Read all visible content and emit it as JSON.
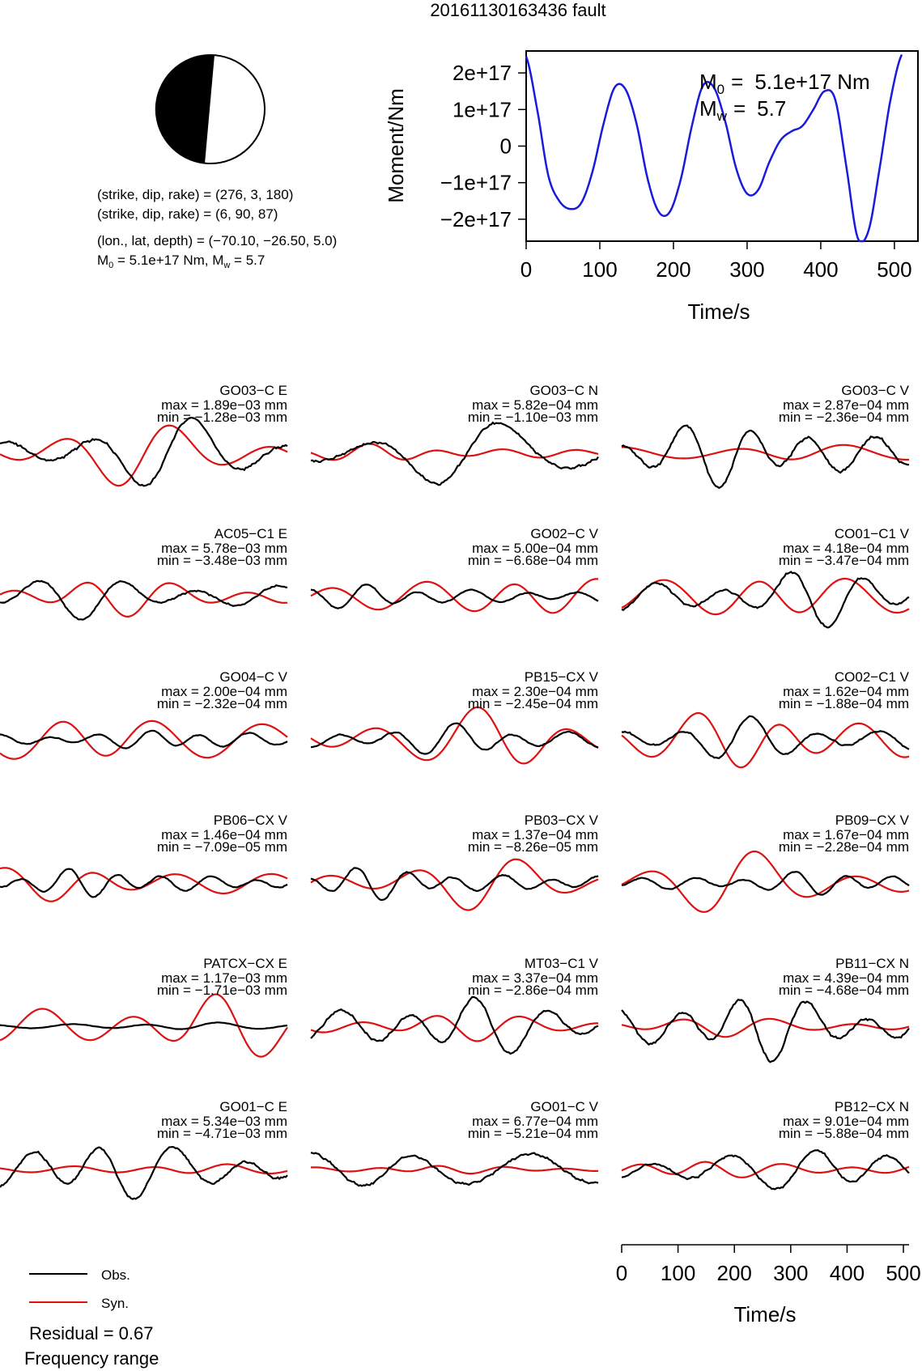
{
  "title": "20161130163436 fault",
  "mechanism": {
    "plane1": "(strike, dip, rake) = (276, 3, 180)",
    "plane2": "(strike, dip, rake) = (6, 90, 87)",
    "location": "(lon., lat, depth) = (−70.10, −26.50, 5.0)",
    "m0_label": "M",
    "m0_sub": "0",
    "m0_value": " =  5.1e+17 Nm, M",
    "mw_sub": "w",
    "mw_value": " = 5.7"
  },
  "moment_plot": {
    "ylabel": "Moment/Nm",
    "xlabel": "Time/s",
    "m0_text": "5.1e+17 Nm",
    "mw_text": "5.7",
    "m0_sym": "M",
    "m0_sub": "0",
    "mw_sym": "M",
    "mw_sub": "w",
    "eq": "=",
    "colors": {
      "curve": "#1a1adc"
    }
  },
  "legend": {
    "obs": "Obs.",
    "syn": "Syn.",
    "residual": "Residual = 0.67",
    "freq": "Frequency range"
  },
  "bottom_axis": {
    "xlabel": "Time/s"
  },
  "chart_data": [
    {
      "type": "line",
      "title": "",
      "xlabel": "Time/s",
      "ylabel": "Moment/Nm",
      "xlim": [
        0,
        510
      ],
      "ylim": [
        -2.6e+17,
        2.6e+17
      ],
      "xticks": [
        0,
        100,
        200,
        300,
        400,
        500
      ],
      "yticks": [
        2e+17,
        1e+17,
        0,
        -1e+17,
        -2e+17
      ],
      "ytick_labels": [
        "2e+17",
        "1e+17",
        "0",
        "−1e+17",
        "−2e+17"
      ],
      "series": [
        {
          "x": [
            0,
            15,
            30,
            45,
            60,
            75,
            90,
            105,
            120,
            135,
            150,
            165,
            180,
            195,
            210,
            225,
            240,
            255,
            270,
            285,
            300,
            315,
            330,
            345,
            360,
            375,
            390,
            405,
            420,
            435,
            450,
            465,
            480,
            495,
            510
          ],
          "values": [
            2.45e+17,
            1e+17,
            -8e+16,
            -1.5e+17,
            -1.72e+17,
            -1.55e+17,
            -7e+16,
            6e+16,
            1.6e+17,
            1.55e+17,
            6e+16,
            -9e+16,
            -1.8e+17,
            -1.8e+17,
            -9e+16,
            5.5e+16,
            1.65e+17,
            1.6e+17,
            7e+16,
            -6e+16,
            -1.3e+17,
            -1.2e+17,
            -4.5e+16,
            1.5e+16,
            4e+16,
            5.5e+16,
            1e+17,
            1.5e+17,
            1.25e+17,
            -6e+16,
            -2.5e+17,
            -2.3e+17,
            -6e+16,
            1.3e+17,
            2.5e+17
          ]
        }
      ]
    },
    {
      "type": "line",
      "title": "",
      "xlabel": "Time/s",
      "series_names": [
        "Obs.",
        "Syn."
      ],
      "xlim": [
        0,
        510
      ],
      "xticks": [
        0,
        100,
        200,
        300,
        400,
        500
      ],
      "colors": {
        "obs": "#000000",
        "syn": "#dd1111"
      },
      "stations": [
        {
          "name": "GO03−C E",
          "max": "max = 1.89e−03 mm",
          "min": "min = −1.28e−03 mm",
          "obs_amp": 1.0,
          "obs_f": 1.6,
          "syn_amp": 0.9,
          "syn_f": 1.5,
          "seed": 1
        },
        {
          "name": "GO03−C N",
          "max": "max = 5.82e−04 mm",
          "min": "min = −1.10e−03 mm",
          "obs_amp": 1.0,
          "obs_f": 1.2,
          "syn_amp": 0.25,
          "syn_f": 2.2,
          "seed": 2
        },
        {
          "name": "GO03−C V",
          "max": "max = 2.87e−04 mm",
          "min": "min = −2.36e−04 mm",
          "obs_amp": 1.0,
          "obs_f": 2.4,
          "syn_amp": 0.35,
          "syn_f": 1.3,
          "seed": 3
        },
        {
          "name": "AC05−C1 E",
          "max": "max = 5.78e−03 mm",
          "min": "min = −3.48e−03 mm",
          "obs_amp": 0.6,
          "obs_f": 1.9,
          "syn_amp": 0.55,
          "syn_f": 1.9,
          "seed": 4
        },
        {
          "name": "GO02−C V",
          "max": "max = 5.00e−04 mm",
          "min": "min = −6.68e−04 mm",
          "obs_amp": 0.35,
          "obs_f": 2.8,
          "syn_amp": 0.8,
          "syn_f": 1.7,
          "seed": 5
        },
        {
          "name": "CO01−C1 V",
          "max": "max = 4.18e−04 mm",
          "min": "min = −3.47e−04 mm",
          "obs_amp": 0.8,
          "obs_f": 2.2,
          "syn_amp": 0.9,
          "syn_f": 1.6,
          "seed": 6
        },
        {
          "name": "GO04−C V",
          "max": "max = 2.00e−04 mm",
          "min": "min = −2.32e−04 mm",
          "obs_amp": 0.3,
          "obs_f": 3.0,
          "syn_amp": 1.0,
          "syn_f": 1.5,
          "seed": 7
        },
        {
          "name": "PB15−CX V",
          "max": "max = 2.30e−04 mm",
          "min": "min = −2.45e−04 mm",
          "obs_amp": 0.45,
          "obs_f": 2.6,
          "syn_amp": 1.0,
          "syn_f": 1.6,
          "seed": 8
        },
        {
          "name": "CO02−C1 V",
          "max": "max = 1.62e−04 mm",
          "min": "min = −1.88e−04 mm",
          "obs_amp": 0.6,
          "obs_f": 2.3,
          "syn_amp": 1.0,
          "syn_f": 1.8,
          "seed": 9
        },
        {
          "name": "PB06−CX V",
          "max": "max = 1.46e−04 mm",
          "min": "min = −7.09e−05 mm",
          "obs_amp": 0.4,
          "obs_f": 3.2,
          "syn_amp": 0.6,
          "syn_f": 1.7,
          "seed": 10
        },
        {
          "name": "PB03−CX V",
          "max": "max = 1.37e−04 mm",
          "min": "min = −8.26e−05 mm",
          "obs_amp": 0.45,
          "obs_f": 3.1,
          "syn_amp": 0.75,
          "syn_f": 1.6,
          "seed": 11
        },
        {
          "name": "PB09−CX V",
          "max": "max = 1.67e−04 mm",
          "min": "min = −2.28e−04 mm",
          "obs_amp": 0.35,
          "obs_f": 3.0,
          "syn_amp": 0.9,
          "syn_f": 1.5,
          "seed": 12
        },
        {
          "name": "PATCX−CX E",
          "max": "max = 1.17e−03 mm",
          "min": "min = −1.71e−03 mm",
          "obs_amp": 0.12,
          "obs_f": 2.0,
          "syn_amp": 1.0,
          "syn_f": 1.7,
          "seed": 13
        },
        {
          "name": "MT03−C1 V",
          "max": "max = 3.37e−04 mm",
          "min": "min = −2.86e−04 mm",
          "obs_amp": 0.9,
          "obs_f": 2.2,
          "syn_amp": 0.4,
          "syn_f": 1.9,
          "seed": 14
        },
        {
          "name": "PB11−CX N",
          "max": "max = 4.39e−04 mm",
          "min": "min = −4.68e−04 mm",
          "obs_amp": 1.0,
          "obs_f": 2.4,
          "syn_amp": 0.3,
          "syn_f": 1.8,
          "seed": 15
        },
        {
          "name": "GO01−C E",
          "max": "max = 5.34e−03 mm",
          "min": "min = −4.71e−03 mm",
          "obs_amp": 1.0,
          "obs_f": 2.1,
          "syn_amp": 0.18,
          "syn_f": 1.9,
          "seed": 16
        },
        {
          "name": "GO01−C V",
          "max": "max = 6.77e−04 mm",
          "min": "min = −5.21e−04 mm",
          "obs_amp": 0.9,
          "obs_f": 1.3,
          "syn_amp": 0.12,
          "syn_f": 2.4,
          "seed": 17
        },
        {
          "name": "PB12−CX N",
          "max": "max = 9.01e−04 mm",
          "min": "min = −5.88e−04 mm",
          "obs_amp": 0.8,
          "obs_f": 1.9,
          "syn_amp": 0.3,
          "syn_f": 2.1,
          "seed": 18
        }
      ]
    }
  ]
}
